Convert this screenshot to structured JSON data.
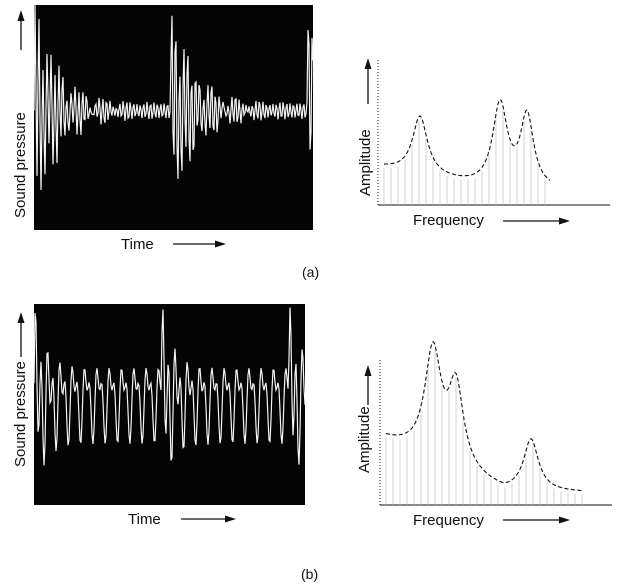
{
  "panel_a": {
    "part_label": "(a)",
    "waveform": {
      "y_label": "Sound pressure",
      "x_label": "Time"
    },
    "spectrum": {
      "y_label": "Amplitude",
      "x_label": "Frequency"
    }
  },
  "panel_b": {
    "part_label": "(b)",
    "waveform": {
      "y_label": "Sound pressure",
      "x_label": "Time"
    },
    "spectrum": {
      "y_label": "Amplitude",
      "x_label": "Frequency"
    }
  },
  "colors": {
    "scope_background": "#050505",
    "trace": "#f4f4f4",
    "ink": "#111111"
  }
}
